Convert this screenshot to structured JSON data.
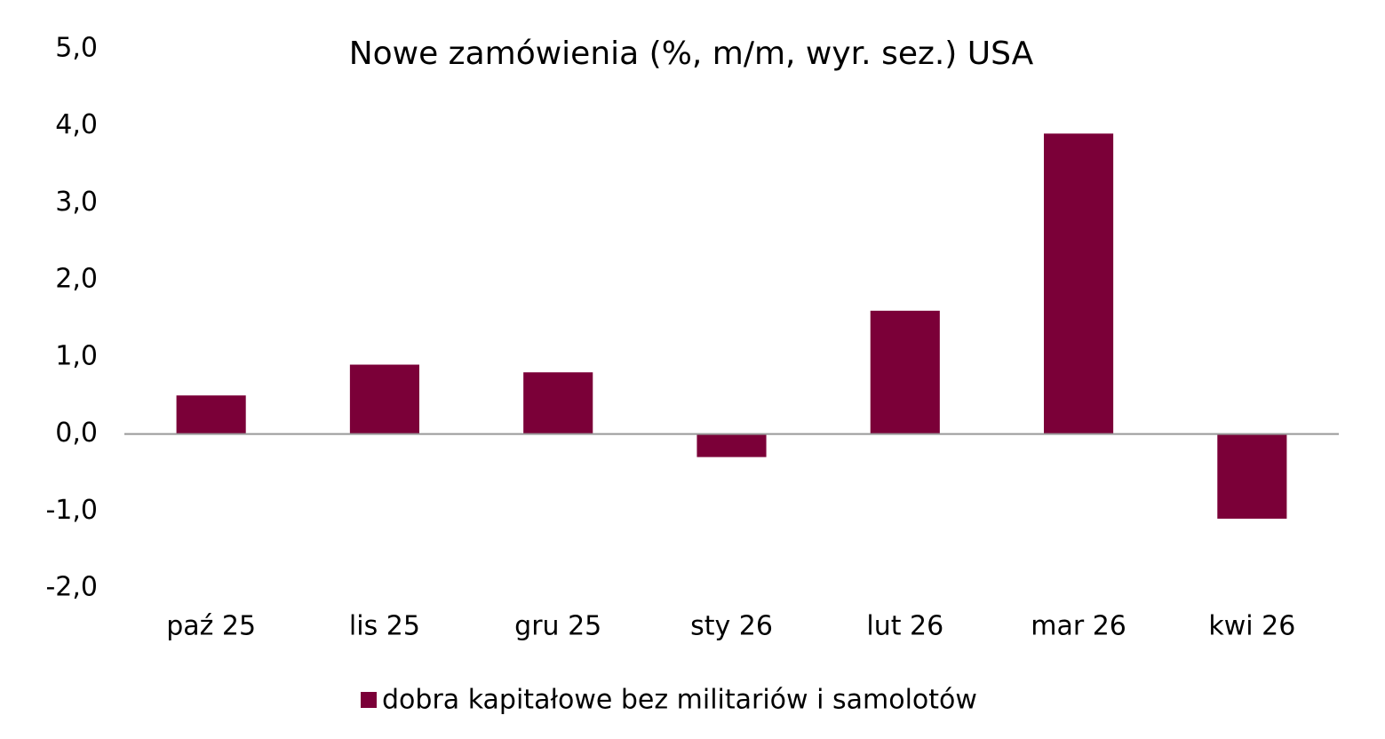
{
  "chart_data": {
    "type": "bar",
    "title": "Nowe zamówienia (%, m/m, wyr. sez.) USA",
    "categories": [
      "paź 25",
      "lis 25",
      "gru 25",
      "sty 26",
      "lut 26",
      "mar 26",
      "kwi 26"
    ],
    "series": [
      {
        "name": "dobra kapitałowe bez militariów i samolotów",
        "color": "#7b0038",
        "values": [
          0.5,
          0.9,
          0.8,
          -0.3,
          1.6,
          3.9,
          -1.1
        ]
      }
    ],
    "ylim": [
      -2,
      5
    ],
    "yticks": [
      {
        "value": 5,
        "label": "5,0"
      },
      {
        "value": 4,
        "label": "4,0"
      },
      {
        "value": 3,
        "label": "3,0"
      },
      {
        "value": 2,
        "label": "2,0"
      },
      {
        "value": 1,
        "label": "1,0"
      },
      {
        "value": 0,
        "label": "0,0"
      },
      {
        "value": -1,
        "label": "-1,0"
      },
      {
        "value": -2,
        "label": "-2,0"
      }
    ],
    "grid": false,
    "legend": "bottom"
  }
}
